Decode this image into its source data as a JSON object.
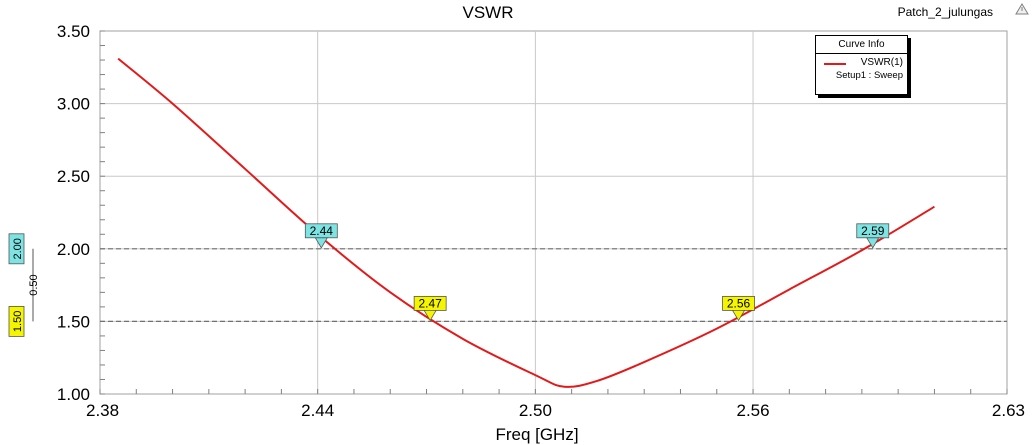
{
  "chart_data": {
    "type": "line",
    "title": "VSWR",
    "project_label": "Patch_2_julungas",
    "xlabel": "Freq [GHz]",
    "ylabel": "",
    "xlim": [
      2.38,
      2.63
    ],
    "ylim": [
      1.0,
      3.5
    ],
    "x_ticks": [
      2.38,
      2.44,
      2.5,
      2.56,
      2.63
    ],
    "x_tick_labels": [
      "2.38",
      "2.44",
      "2.50",
      "2.56",
      "2.63"
    ],
    "y_ticks": [
      1.0,
      1.5,
      2.0,
      2.5,
      3.0,
      3.5
    ],
    "y_tick_labels": [
      "1.00",
      "1.50",
      "2.00",
      "2.50",
      "3.00",
      "3.50"
    ],
    "grid": true,
    "legend_title": "Curve Info",
    "series": [
      {
        "name": "VSWR(1)",
        "setup": "Setup1 : Sweep",
        "color": "#e31a1c",
        "x": [
          2.385,
          2.4,
          2.42,
          2.44,
          2.46,
          2.48,
          2.5,
          2.508,
          2.517,
          2.53,
          2.55,
          2.57,
          2.59,
          2.61
        ],
        "y": [
          3.31,
          3.0,
          2.55,
          2.1,
          1.7,
          1.38,
          1.13,
          1.05,
          1.09,
          1.22,
          1.45,
          1.72,
          1.99,
          2.29
        ]
      }
    ],
    "reference_lines": [
      {
        "y": 2.0,
        "label": "2.00",
        "color": "#7ee3e3"
      },
      {
        "y": 1.5,
        "label": "1.50",
        "color": "#f5f500"
      }
    ],
    "reference_gap_label": "0.50",
    "markers": [
      {
        "x": 2.441,
        "y": 2.0,
        "label": "2.44",
        "color": "#7ee3e3"
      },
      {
        "x": 2.471,
        "y": 1.5,
        "label": "2.47",
        "color": "#f5f500"
      },
      {
        "x": 2.556,
        "y": 1.5,
        "label": "2.56",
        "color": "#f5f500"
      },
      {
        "x": 2.593,
        "y": 2.0,
        "label": "2.59",
        "color": "#7ee3e3"
      }
    ]
  }
}
